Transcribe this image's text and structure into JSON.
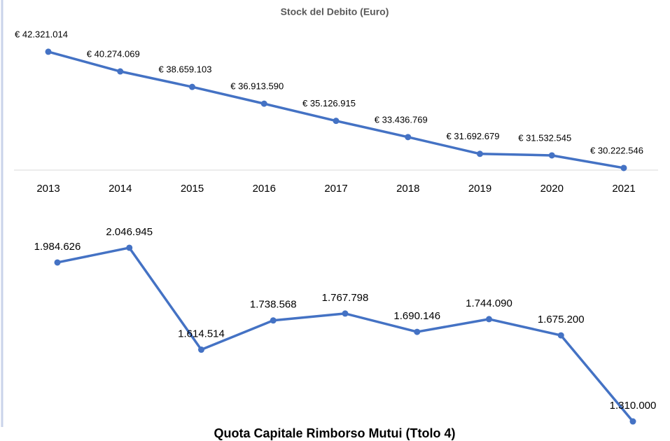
{
  "chart_data": [
    {
      "type": "line",
      "title": "Stock del Debito (Euro)",
      "categories": [
        "2013",
        "2014",
        "2015",
        "2016",
        "2017",
        "2018",
        "2019",
        "2020",
        "2021"
      ],
      "values": [
        42321014,
        40274069,
        38659103,
        36913590,
        35126915,
        33436769,
        31692679,
        31532545,
        30222546
      ],
      "value_labels": [
        "€ 42.321.014",
        "€ 40.274.069",
        "€ 38.659.103",
        "€ 36.913.590",
        "€ 35.126.915",
        "€ 33.436.769",
        "€ 31.692.679",
        "€ 31.532.545",
        "€ 30.222.546"
      ],
      "color": "#4472c4",
      "ylim": [
        30000000,
        43000000
      ]
    },
    {
      "type": "line",
      "title": "Quota Capitale Rimborso Mutui (Ttolo 4)",
      "values": [
        1984626,
        2046945,
        1614514,
        1738568,
        1767798,
        1690146,
        1744090,
        1675200,
        1310000
      ],
      "value_labels": [
        "1.984.626",
        "2.046.945",
        "1.614.514",
        "1.738.568",
        "1.767.798",
        "1.690.146",
        "1.744.090",
        "1.675.200",
        "1.310.000"
      ],
      "color": "#4472c4",
      "ylim": [
        1300000,
        2100000
      ]
    }
  ]
}
